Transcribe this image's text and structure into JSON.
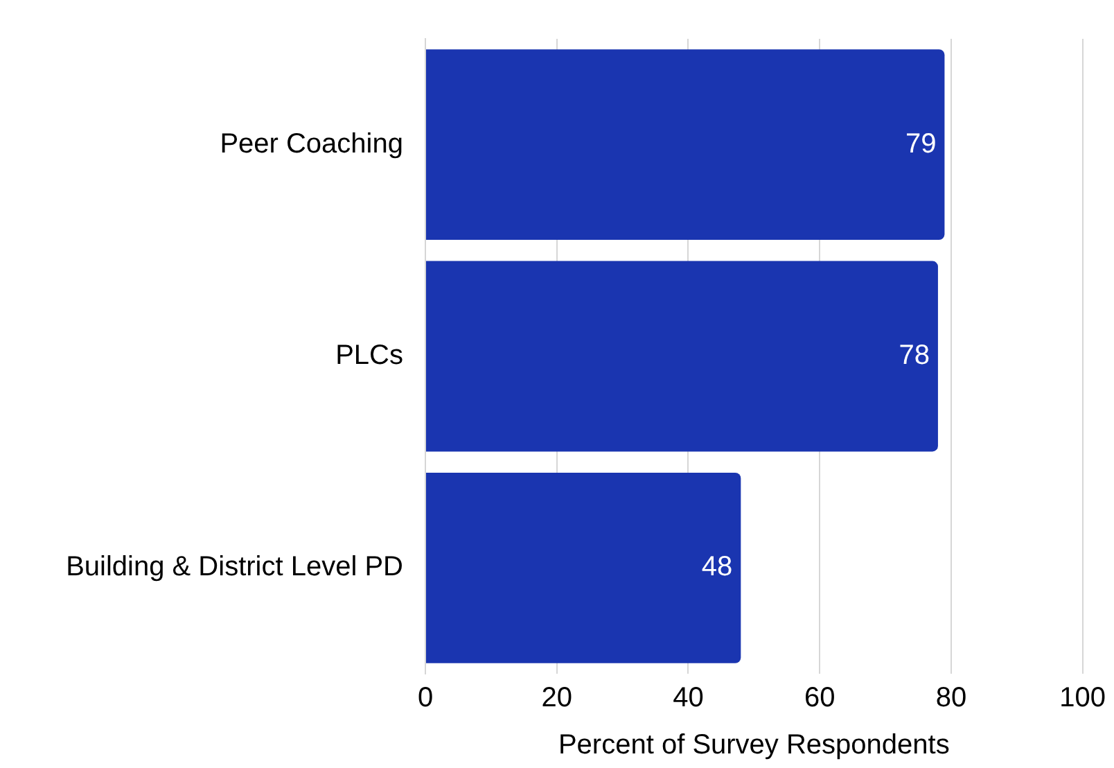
{
  "chart_data": {
    "type": "bar",
    "orientation": "horizontal",
    "categories": [
      "Peer Coaching",
      "PLCs",
      "Building & District Level PD"
    ],
    "values": [
      79,
      78,
      48
    ],
    "color": "#1a35b0",
    "xlim": [
      0,
      100
    ],
    "xticks": [
      0,
      20,
      40,
      60,
      80,
      100
    ],
    "xlabel": "Percent of Survey Respondents",
    "grid": "x",
    "data_labels": true,
    "legend": false
  }
}
